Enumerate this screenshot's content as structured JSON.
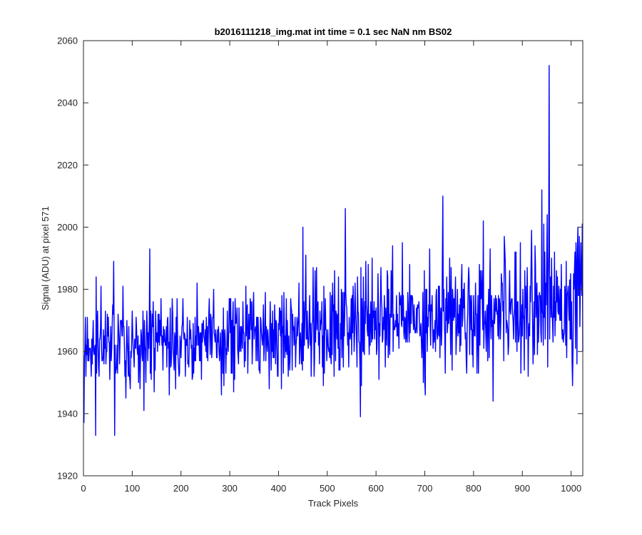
{
  "chart_data": {
    "type": "line",
    "title": "b2016111218_img.mat int time = 0.1 sec  NaN nm BS02",
    "xlabel": "Track Pixels",
    "ylabel": "Signal (ADU) at pixel 571",
    "xlim": [
      0,
      1024
    ],
    "ylim": [
      1920,
      2060
    ],
    "xticks": [
      0,
      100,
      200,
      300,
      400,
      500,
      600,
      700,
      800,
      900,
      1000
    ],
    "yticks": [
      1920,
      1940,
      1960,
      1980,
      2000,
      2020,
      2040,
      2060
    ],
    "grid": false,
    "legend": "none",
    "series": [
      {
        "color": "#0000ff",
        "x_start": 1,
        "x_step": 1,
        "values_description": "",
        "values": []
      }
    ],
    "notable_points": [
      {
        "x": 1,
        "y": 1937
      },
      {
        "x": 25,
        "y": 1933
      },
      {
        "x": 26,
        "y": 1984
      },
      {
        "x": 62,
        "y": 1989
      },
      {
        "x": 64,
        "y": 1933
      },
      {
        "x": 136,
        "y": 1993
      },
      {
        "x": 450,
        "y": 2000
      },
      {
        "x": 537,
        "y": 2006
      },
      {
        "x": 568,
        "y": 1939
      },
      {
        "x": 737,
        "y": 2010
      },
      {
        "x": 840,
        "y": 1944
      },
      {
        "x": 940,
        "y": 2012
      },
      {
        "x": 955,
        "y": 2052
      },
      {
        "x": 1003,
        "y": 1949
      },
      {
        "x": 1014,
        "y": 2000
      }
    ],
    "trend": {
      "start_mean": 1962,
      "end_mean": 1978,
      "noise_std": 8
    }
  },
  "colors": {
    "line": "#0000ff",
    "axes": "#262626",
    "background": "#ffffff"
  }
}
